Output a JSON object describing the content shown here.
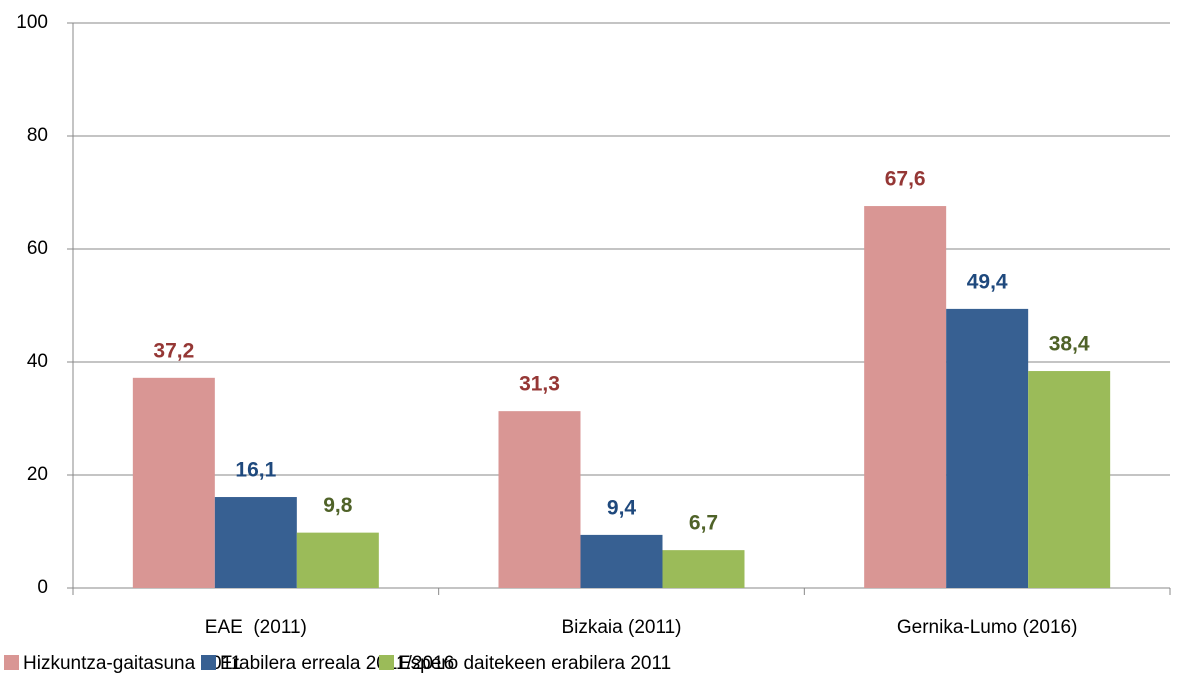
{
  "chart_data": {
    "type": "bar",
    "categories": [
      "EAE  (2011)",
      "Bizkaia (2011)",
      "Gernika-Lumo (2016)"
    ],
    "series": [
      {
        "name": "Hizkuntza-gaitasuna 2011",
        "color": "#d99694",
        "label_color": "#953735",
        "values": [
          37.2,
          31.3,
          67.6
        ],
        "value_labels": [
          "37,2",
          "31,3",
          "67,6"
        ]
      },
      {
        "name": "Erabilera erreala 2011/2016",
        "color": "#376092",
        "label_color": "#1f497d",
        "values": [
          16.1,
          9.4,
          49.4
        ],
        "value_labels": [
          "16,1",
          "9,4",
          "49,4"
        ]
      },
      {
        "name": "Espero daitekeen erabilera 2011",
        "color": "#9bbb59",
        "label_color": "#4f6228",
        "values": [
          9.8,
          6.7,
          38.4
        ],
        "value_labels": [
          "9,8",
          "6,7",
          "38,4"
        ]
      }
    ],
    "ylim": [
      0,
      100
    ],
    "yticks": [
      0,
      20,
      40,
      60,
      80,
      100
    ],
    "grid": true,
    "legend": "bottom"
  }
}
